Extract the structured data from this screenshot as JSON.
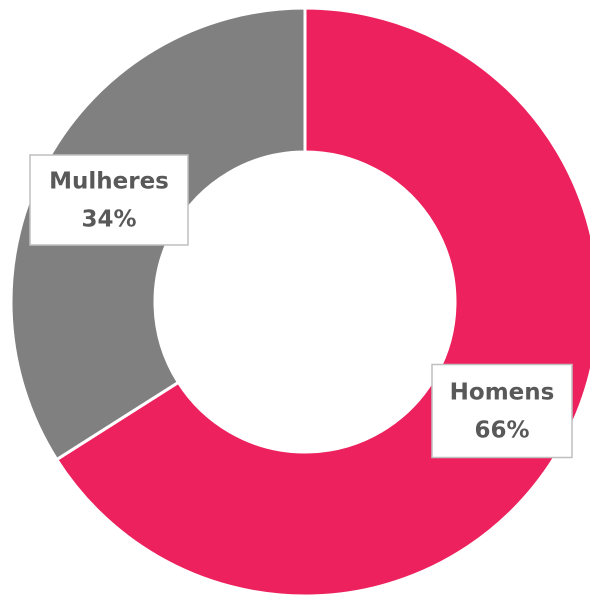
{
  "chart_data": {
    "type": "donut",
    "categories": [
      "Homens",
      "Mulheres"
    ],
    "values": [
      66,
      34
    ],
    "value_labels": [
      "66%",
      "34%"
    ],
    "colors": [
      "#ec215d",
      "#808080"
    ]
  }
}
